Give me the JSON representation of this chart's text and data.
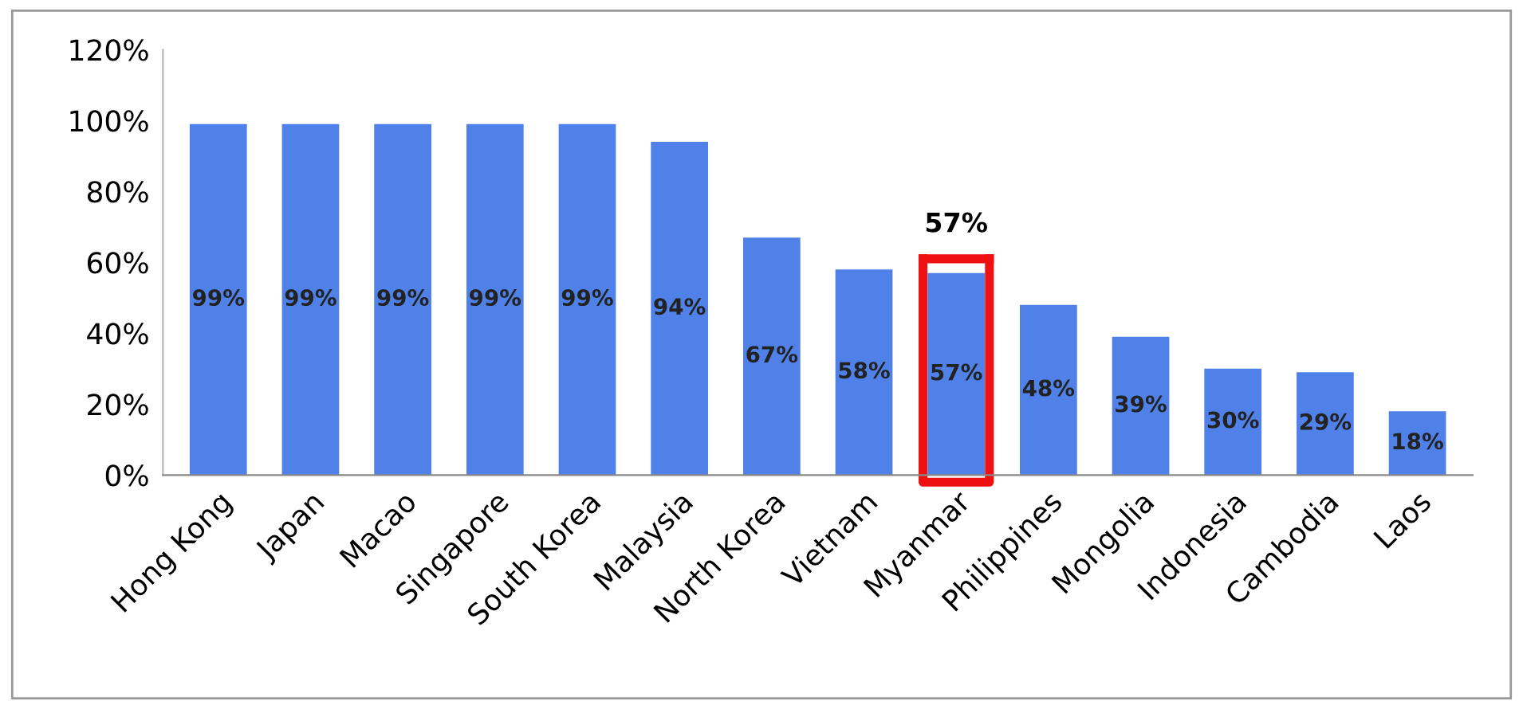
{
  "chart_data": {
    "type": "bar",
    "categories": [
      "Hong Kong",
      "Japan",
      "Macao",
      "Singapore",
      "South Korea",
      "Malaysia",
      "North Korea",
      "Vietnam",
      "Myanmar",
      "Philippines",
      "Mongolia",
      "Indonesia",
      "Cambodia",
      "Laos"
    ],
    "values": [
      99,
      99,
      99,
      99,
      99,
      94,
      67,
      58,
      57,
      48,
      39,
      30,
      29,
      18
    ],
    "color": "#4f81e8",
    "value_labels": [
      "99%",
      "99%",
      "99%",
      "99%",
      "99%",
      "94%",
      "67%",
      "58%",
      "57%",
      "48%",
      "39%",
      "30%",
      "29%",
      "18%"
    ],
    "ylim": [
      0,
      120
    ],
    "yticks": [
      {
        "value": 0,
        "label": "0%"
      },
      {
        "value": 20,
        "label": "20%"
      },
      {
        "value": 40,
        "label": "40%"
      },
      {
        "value": 60,
        "label": "60%"
      },
      {
        "value": 80,
        "label": "80%"
      },
      {
        "value": 100,
        "label": "100%"
      },
      {
        "value": 120,
        "label": "120%"
      }
    ],
    "annotations": [
      {
        "text": "57%",
        "x": "Myanmar",
        "y": 57
      }
    ],
    "grid": false
  }
}
